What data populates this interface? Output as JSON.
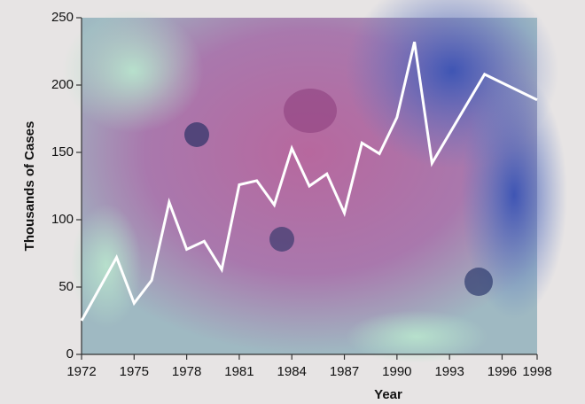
{
  "chart_data": {
    "type": "line",
    "x_label": "Year",
    "y_label": "Thousands of Cases",
    "x": [
      1972,
      1974,
      1975,
      1976,
      1977,
      1978,
      1979,
      1980,
      1981,
      1982,
      1983,
      1984,
      1985,
      1986,
      1987,
      1988,
      1989,
      1990,
      1991,
      1992,
      1995,
      1998
    ],
    "values": [
      25,
      72,
      38,
      55,
      113,
      78,
      84,
      63,
      126,
      129,
      111,
      153,
      125,
      134,
      105,
      157,
      149,
      176,
      232,
      142,
      208,
      189
    ],
    "color": "#ffffff",
    "xlim": [
      1972,
      1998
    ],
    "xticks": [
      1972,
      1975,
      1978,
      1981,
      1984,
      1987,
      1990,
      1993,
      1996,
      1998
    ],
    "ylim": [
      0,
      250
    ],
    "yticks": [
      0,
      50,
      100,
      150,
      200,
      250
    ]
  }
}
